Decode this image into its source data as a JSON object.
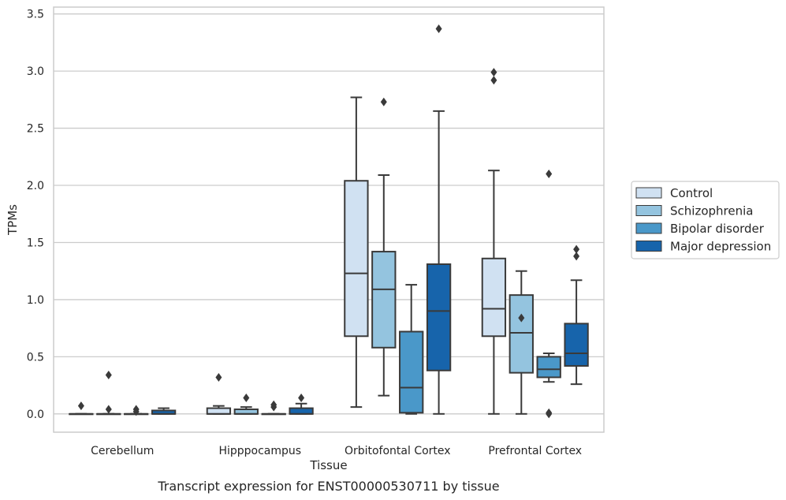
{
  "chart_data": {
    "type": "box",
    "title": "",
    "caption": "Transcript expression for ENST00000530711 by tissue",
    "xlabel": "Tissue",
    "ylabel": "TPMs",
    "ylim": [
      -0.16,
      3.56
    ],
    "yticks": [
      "0.0",
      "0.5",
      "1.0",
      "1.5",
      "2.0",
      "2.5",
      "3.0",
      "3.5"
    ],
    "ytick_values": [
      0,
      0.5,
      1.0,
      1.5,
      2.0,
      2.5,
      3.0,
      3.5
    ],
    "grid": "horizontal",
    "legend_position": "right",
    "categories": [
      "Cerebellum",
      "Hipppocampus",
      "Orbitofontal Cortex",
      "Prefrontal Cortex"
    ],
    "series": [
      {
        "name": "Control",
        "color": "#d0e1f2",
        "boxes": [
          {
            "whislo": 0.0,
            "q1": 0.0,
            "med": 0.0,
            "q3": 0.0,
            "whishi": 0.0,
            "fliers": [
              0.07
            ]
          },
          {
            "whislo": 0.0,
            "q1": 0.0,
            "med": 0.0,
            "q3": 0.05,
            "whishi": 0.07,
            "fliers": [
              0.32
            ]
          },
          {
            "whislo": 0.06,
            "q1": 0.68,
            "med": 1.23,
            "q3": 2.04,
            "whishi": 2.77,
            "fliers": []
          },
          {
            "whislo": 0.0,
            "q1": 0.68,
            "med": 0.92,
            "q3": 1.36,
            "whishi": 2.13,
            "fliers": [
              2.92,
              2.99
            ]
          }
        ]
      },
      {
        "name": "Schizophrenia",
        "color": "#94c4df",
        "boxes": [
          {
            "whislo": 0.0,
            "q1": 0.0,
            "med": 0.0,
            "q3": 0.0,
            "whishi": 0.0,
            "fliers": [
              0.04,
              0.34
            ]
          },
          {
            "whislo": 0.0,
            "q1": 0.0,
            "med": 0.0,
            "q3": 0.04,
            "whishi": 0.06,
            "fliers": [
              0.14
            ]
          },
          {
            "whislo": 0.16,
            "q1": 0.58,
            "med": 1.09,
            "q3": 1.42,
            "whishi": 2.09,
            "fliers": [
              2.73
            ]
          },
          {
            "whislo": 0.0,
            "q1": 0.36,
            "med": 0.71,
            "q3": 1.04,
            "whishi": 1.25,
            "fliers": [
              0.84
            ]
          }
        ]
      },
      {
        "name": "Bipolar disorder",
        "color": "#4a98c9",
        "boxes": [
          {
            "whislo": 0.0,
            "q1": 0.0,
            "med": 0.0,
            "q3": 0.0,
            "whishi": 0.0,
            "fliers": [
              0.02,
              0.04
            ]
          },
          {
            "whislo": 0.0,
            "q1": 0.0,
            "med": 0.0,
            "q3": 0.0,
            "whishi": 0.0,
            "fliers": [
              0.06,
              0.08
            ]
          },
          {
            "whislo": 0.0,
            "q1": 0.01,
            "med": 0.23,
            "q3": 0.72,
            "whishi": 1.13,
            "fliers": []
          },
          {
            "whislo": 0.28,
            "q1": 0.32,
            "med": 0.39,
            "q3": 0.5,
            "whishi": 0.53,
            "fliers": [
              0.0,
              0.01,
              2.1
            ]
          }
        ]
      },
      {
        "name": "Major depression",
        "color": "#1764ab",
        "boxes": [
          {
            "whislo": 0.0,
            "q1": 0.0,
            "med": 0.0,
            "q3": 0.03,
            "whishi": 0.05,
            "fliers": []
          },
          {
            "whislo": 0.0,
            "q1": 0.0,
            "med": 0.0,
            "q3": 0.05,
            "whishi": 0.09,
            "fliers": [
              0.14
            ]
          },
          {
            "whislo": 0.0,
            "q1": 0.38,
            "med": 0.9,
            "q3": 1.31,
            "whishi": 2.65,
            "fliers": [
              3.37
            ]
          },
          {
            "whislo": 0.26,
            "q1": 0.42,
            "med": 0.53,
            "q3": 0.79,
            "whishi": 1.17,
            "fliers": [
              1.38,
              1.44
            ]
          }
        ]
      }
    ]
  }
}
